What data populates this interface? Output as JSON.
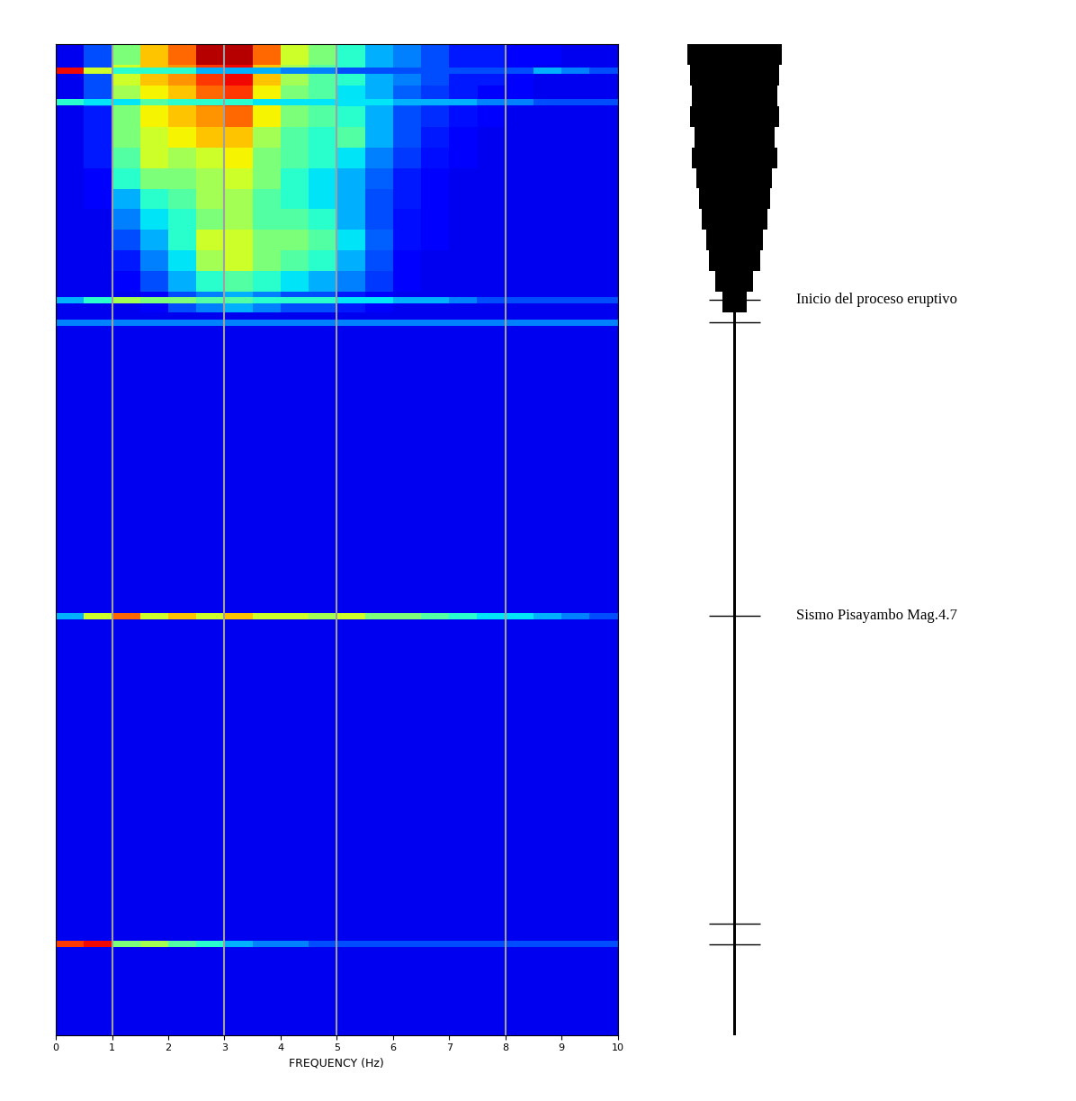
{
  "chart_data": [
    {
      "type": "heatmap",
      "x_label": "FREQUENCY (Hz)",
      "xlim": [
        0,
        10
      ],
      "xticks": [
        0,
        1,
        2,
        3,
        4,
        5,
        6,
        7,
        8,
        9,
        10
      ],
      "ylim": [
        48,
        0
      ],
      "tick_labels": "x",
      "value_range": [
        0,
        1
      ],
      "marked_frequencies": [
        1,
        3,
        5,
        8
      ],
      "cells": [
        [
          0.1,
          0.2,
          0.5,
          0.7,
          0.8,
          0.95,
          0.95,
          0.8,
          0.6,
          0.5,
          0.4,
          0.3,
          0.25,
          0.2,
          0.15,
          0.15,
          0.12,
          0.12,
          0.1,
          0.1
        ],
        [
          0.1,
          0.2,
          0.6,
          0.7,
          0.75,
          0.85,
          0.9,
          0.7,
          0.55,
          0.45,
          0.4,
          0.3,
          0.25,
          0.2,
          0.15,
          0.15,
          0.12,
          0.1,
          0.1,
          0.1
        ],
        [
          0.1,
          0.2,
          0.55,
          0.65,
          0.7,
          0.8,
          0.85,
          0.65,
          0.5,
          0.45,
          0.35,
          0.3,
          0.22,
          0.18,
          0.15,
          0.12,
          0.12,
          0.1,
          0.1,
          0.1
        ],
        [
          0.1,
          0.15,
          0.5,
          0.65,
          0.7,
          0.75,
          0.8,
          0.65,
          0.5,
          0.45,
          0.4,
          0.3,
          0.2,
          0.17,
          0.14,
          0.12,
          0.1,
          0.1,
          0.1,
          0.1
        ],
        [
          0.1,
          0.15,
          0.5,
          0.6,
          0.65,
          0.7,
          0.7,
          0.55,
          0.45,
          0.4,
          0.45,
          0.3,
          0.2,
          0.15,
          0.12,
          0.1,
          0.1,
          0.1,
          0.1,
          0.1
        ],
        [
          0.1,
          0.15,
          0.45,
          0.6,
          0.55,
          0.6,
          0.65,
          0.5,
          0.45,
          0.4,
          0.35,
          0.25,
          0.18,
          0.14,
          0.12,
          0.1,
          0.1,
          0.1,
          0.1,
          0.1
        ],
        [
          0.1,
          0.12,
          0.4,
          0.5,
          0.5,
          0.55,
          0.6,
          0.5,
          0.4,
          0.35,
          0.3,
          0.22,
          0.15,
          0.12,
          0.1,
          0.1,
          0.1,
          0.1,
          0.1,
          0.1
        ],
        [
          0.1,
          0.12,
          0.3,
          0.4,
          0.45,
          0.55,
          0.55,
          0.45,
          0.4,
          0.35,
          0.3,
          0.2,
          0.15,
          0.12,
          0.1,
          0.1,
          0.1,
          0.1,
          0.1,
          0.1
        ],
        [
          0.1,
          0.1,
          0.25,
          0.35,
          0.4,
          0.5,
          0.55,
          0.45,
          0.45,
          0.4,
          0.3,
          0.2,
          0.14,
          0.12,
          0.1,
          0.1,
          0.1,
          0.1,
          0.1,
          0.1
        ],
        [
          0.1,
          0.1,
          0.2,
          0.3,
          0.4,
          0.6,
          0.6,
          0.5,
          0.5,
          0.45,
          0.35,
          0.22,
          0.14,
          0.12,
          0.1,
          0.1,
          0.1,
          0.1,
          0.1,
          0.1
        ],
        [
          0.1,
          0.1,
          0.15,
          0.25,
          0.35,
          0.55,
          0.6,
          0.5,
          0.45,
          0.4,
          0.3,
          0.2,
          0.12,
          0.1,
          0.1,
          0.1,
          0.1,
          0.1,
          0.1,
          0.1
        ],
        [
          0.1,
          0.1,
          0.12,
          0.2,
          0.3,
          0.4,
          0.45,
          0.4,
          0.35,
          0.3,
          0.25,
          0.18,
          0.12,
          0.1,
          0.1,
          0.1,
          0.1,
          0.1,
          0.1,
          0.1
        ],
        [
          0.1,
          0.1,
          0.1,
          0.12,
          0.2,
          0.25,
          0.3,
          0.25,
          0.2,
          0.2,
          0.15,
          0.12,
          0.1,
          0.1,
          0.1,
          0.1,
          0.1,
          0.1,
          0.1,
          0.1
        ],
        [
          0.1,
          0.1,
          0.1,
          0.1,
          0.1,
          0.1,
          0.1,
          0.1,
          0.1,
          0.1,
          0.1,
          0.1,
          0.1,
          0.1,
          0.1,
          0.1,
          0.1,
          0.1,
          0.1,
          0.1
        ],
        [
          0.1,
          0.1,
          0.1,
          0.1,
          0.1,
          0.1,
          0.1,
          0.1,
          0.1,
          0.1,
          0.1,
          0.1,
          0.1,
          0.1,
          0.1,
          0.1,
          0.1,
          0.1,
          0.1,
          0.1
        ],
        [
          0.1,
          0.1,
          0.1,
          0.1,
          0.1,
          0.1,
          0.1,
          0.1,
          0.1,
          0.1,
          0.1,
          0.1,
          0.1,
          0.1,
          0.1,
          0.1,
          0.1,
          0.1,
          0.1,
          0.1
        ],
        [
          0.1,
          0.1,
          0.1,
          0.1,
          0.1,
          0.1,
          0.1,
          0.1,
          0.1,
          0.1,
          0.1,
          0.1,
          0.1,
          0.1,
          0.1,
          0.1,
          0.1,
          0.1,
          0.1,
          0.1
        ],
        [
          0.1,
          0.1,
          0.1,
          0.1,
          0.1,
          0.1,
          0.1,
          0.1,
          0.1,
          0.1,
          0.1,
          0.1,
          0.1,
          0.1,
          0.1,
          0.1,
          0.1,
          0.1,
          0.1,
          0.1
        ],
        [
          0.1,
          0.1,
          0.1,
          0.1,
          0.1,
          0.1,
          0.1,
          0.1,
          0.1,
          0.1,
          0.1,
          0.1,
          0.1,
          0.1,
          0.1,
          0.1,
          0.1,
          0.1,
          0.1,
          0.1
        ],
        [
          0.1,
          0.1,
          0.1,
          0.1,
          0.1,
          0.1,
          0.1,
          0.1,
          0.1,
          0.1,
          0.1,
          0.1,
          0.1,
          0.1,
          0.1,
          0.1,
          0.1,
          0.1,
          0.1,
          0.1
        ],
        [
          0.1,
          0.1,
          0.1,
          0.1,
          0.1,
          0.1,
          0.1,
          0.1,
          0.1,
          0.1,
          0.1,
          0.1,
          0.1,
          0.1,
          0.1,
          0.1,
          0.1,
          0.1,
          0.1,
          0.1
        ],
        [
          0.1,
          0.1,
          0.1,
          0.1,
          0.1,
          0.1,
          0.1,
          0.1,
          0.1,
          0.1,
          0.1,
          0.1,
          0.1,
          0.1,
          0.1,
          0.1,
          0.1,
          0.1,
          0.1,
          0.1
        ],
        [
          0.1,
          0.1,
          0.1,
          0.1,
          0.1,
          0.1,
          0.1,
          0.1,
          0.1,
          0.1,
          0.1,
          0.1,
          0.1,
          0.1,
          0.1,
          0.1,
          0.1,
          0.1,
          0.1,
          0.1
        ],
        [
          0.1,
          0.1,
          0.1,
          0.1,
          0.1,
          0.1,
          0.1,
          0.1,
          0.1,
          0.1,
          0.1,
          0.1,
          0.1,
          0.1,
          0.1,
          0.1,
          0.1,
          0.1,
          0.1,
          0.1
        ],
        [
          0.1,
          0.1,
          0.1,
          0.1,
          0.1,
          0.1,
          0.1,
          0.1,
          0.1,
          0.1,
          0.1,
          0.1,
          0.1,
          0.1,
          0.1,
          0.1,
          0.1,
          0.1,
          0.1,
          0.1
        ],
        [
          0.1,
          0.1,
          0.1,
          0.1,
          0.1,
          0.1,
          0.1,
          0.1,
          0.1,
          0.1,
          0.1,
          0.1,
          0.1,
          0.1,
          0.1,
          0.1,
          0.1,
          0.1,
          0.1,
          0.1
        ],
        [
          0.1,
          0.1,
          0.1,
          0.1,
          0.1,
          0.1,
          0.1,
          0.1,
          0.1,
          0.1,
          0.1,
          0.1,
          0.1,
          0.1,
          0.1,
          0.1,
          0.1,
          0.1,
          0.1,
          0.1
        ],
        [
          0.1,
          0.1,
          0.1,
          0.1,
          0.1,
          0.1,
          0.1,
          0.1,
          0.1,
          0.1,
          0.1,
          0.1,
          0.1,
          0.1,
          0.1,
          0.1,
          0.1,
          0.1,
          0.1,
          0.1
        ],
        [
          0.1,
          0.1,
          0.1,
          0.1,
          0.1,
          0.1,
          0.1,
          0.1,
          0.1,
          0.1,
          0.1,
          0.1,
          0.1,
          0.1,
          0.1,
          0.1,
          0.1,
          0.1,
          0.1,
          0.1
        ],
        [
          0.1,
          0.1,
          0.1,
          0.1,
          0.1,
          0.1,
          0.1,
          0.1,
          0.1,
          0.1,
          0.1,
          0.1,
          0.1,
          0.1,
          0.1,
          0.1,
          0.1,
          0.1,
          0.1,
          0.1
        ],
        [
          0.1,
          0.1,
          0.1,
          0.1,
          0.1,
          0.1,
          0.1,
          0.1,
          0.1,
          0.1,
          0.1,
          0.1,
          0.1,
          0.1,
          0.1,
          0.1,
          0.1,
          0.1,
          0.1,
          0.1
        ],
        [
          0.1,
          0.1,
          0.1,
          0.1,
          0.1,
          0.1,
          0.1,
          0.1,
          0.1,
          0.1,
          0.1,
          0.1,
          0.1,
          0.1,
          0.1,
          0.1,
          0.1,
          0.1,
          0.1,
          0.1
        ],
        [
          0.1,
          0.1,
          0.1,
          0.1,
          0.1,
          0.1,
          0.1,
          0.1,
          0.1,
          0.1,
          0.1,
          0.1,
          0.1,
          0.1,
          0.1,
          0.1,
          0.1,
          0.1,
          0.1,
          0.1
        ],
        [
          0.1,
          0.1,
          0.1,
          0.1,
          0.1,
          0.1,
          0.1,
          0.1,
          0.1,
          0.1,
          0.1,
          0.1,
          0.1,
          0.1,
          0.1,
          0.1,
          0.1,
          0.1,
          0.1,
          0.1
        ],
        [
          0.1,
          0.1,
          0.1,
          0.1,
          0.1,
          0.1,
          0.1,
          0.1,
          0.1,
          0.1,
          0.1,
          0.1,
          0.1,
          0.1,
          0.1,
          0.1,
          0.1,
          0.1,
          0.1,
          0.1
        ],
        [
          0.1,
          0.1,
          0.1,
          0.1,
          0.1,
          0.1,
          0.1,
          0.1,
          0.1,
          0.1,
          0.1,
          0.1,
          0.1,
          0.1,
          0.1,
          0.1,
          0.1,
          0.1,
          0.1,
          0.1
        ],
        [
          0.1,
          0.1,
          0.1,
          0.1,
          0.1,
          0.1,
          0.1,
          0.1,
          0.1,
          0.1,
          0.1,
          0.1,
          0.1,
          0.1,
          0.1,
          0.1,
          0.1,
          0.1,
          0.1,
          0.1
        ],
        [
          0.1,
          0.1,
          0.1,
          0.1,
          0.1,
          0.1,
          0.1,
          0.1,
          0.1,
          0.1,
          0.1,
          0.1,
          0.1,
          0.1,
          0.1,
          0.1,
          0.1,
          0.1,
          0.1,
          0.1
        ],
        [
          0.1,
          0.1,
          0.1,
          0.1,
          0.1,
          0.1,
          0.1,
          0.1,
          0.1,
          0.1,
          0.1,
          0.1,
          0.1,
          0.1,
          0.1,
          0.1,
          0.1,
          0.1,
          0.1,
          0.1
        ],
        [
          0.1,
          0.1,
          0.1,
          0.1,
          0.1,
          0.1,
          0.1,
          0.1,
          0.1,
          0.1,
          0.1,
          0.1,
          0.1,
          0.1,
          0.1,
          0.1,
          0.1,
          0.1,
          0.1,
          0.1
        ],
        [
          0.1,
          0.1,
          0.1,
          0.1,
          0.1,
          0.1,
          0.1,
          0.1,
          0.1,
          0.1,
          0.1,
          0.1,
          0.1,
          0.1,
          0.1,
          0.1,
          0.1,
          0.1,
          0.1,
          0.1
        ],
        [
          0.1,
          0.1,
          0.1,
          0.1,
          0.1,
          0.1,
          0.1,
          0.1,
          0.1,
          0.1,
          0.1,
          0.1,
          0.1,
          0.1,
          0.1,
          0.1,
          0.1,
          0.1,
          0.1,
          0.1
        ],
        [
          0.1,
          0.1,
          0.1,
          0.1,
          0.1,
          0.1,
          0.1,
          0.1,
          0.1,
          0.1,
          0.1,
          0.1,
          0.1,
          0.1,
          0.1,
          0.1,
          0.1,
          0.1,
          0.1,
          0.1
        ],
        [
          0.1,
          0.1,
          0.1,
          0.1,
          0.1,
          0.1,
          0.1,
          0.1,
          0.1,
          0.1,
          0.1,
          0.1,
          0.1,
          0.1,
          0.1,
          0.1,
          0.1,
          0.1,
          0.1,
          0.1
        ],
        [
          0.1,
          0.1,
          0.1,
          0.1,
          0.1,
          0.1,
          0.1,
          0.1,
          0.1,
          0.1,
          0.1,
          0.1,
          0.1,
          0.1,
          0.1,
          0.1,
          0.1,
          0.1,
          0.1,
          0.1
        ],
        [
          0.1,
          0.1,
          0.1,
          0.1,
          0.1,
          0.1,
          0.1,
          0.1,
          0.1,
          0.1,
          0.1,
          0.1,
          0.1,
          0.1,
          0.1,
          0.1,
          0.1,
          0.1,
          0.1,
          0.1
        ],
        [
          0.1,
          0.1,
          0.1,
          0.1,
          0.1,
          0.1,
          0.1,
          0.1,
          0.1,
          0.1,
          0.1,
          0.1,
          0.1,
          0.1,
          0.1,
          0.1,
          0.1,
          0.1,
          0.1,
          0.1
        ],
        [
          0.1,
          0.1,
          0.1,
          0.1,
          0.1,
          0.1,
          0.1,
          0.1,
          0.1,
          0.1,
          0.1,
          0.1,
          0.1,
          0.1,
          0.1,
          0.1,
          0.1,
          0.1,
          0.1,
          0.1
        ]
      ],
      "event_lines": [
        {
          "row": 1.3,
          "values": [
            0.9,
            0.6,
            0.4,
            0.4,
            0.4,
            0.3,
            0.3,
            0.3,
            0.25,
            0.25,
            0.2,
            0.2,
            0.2,
            0.2,
            0.2,
            0.2,
            0.2,
            0.3,
            0.25,
            0.2
          ]
        },
        {
          "row": 2.8,
          "values": [
            0.4,
            0.35,
            0.35,
            0.45,
            0.4,
            0.4,
            0.4,
            0.35,
            0.35,
            0.35,
            0.35,
            0.35,
            0.3,
            0.3,
            0.3,
            0.25,
            0.25,
            0.2,
            0.2,
            0.2
          ]
        },
        {
          "row": 12.4,
          "values": [
            0.3,
            0.4,
            0.55,
            0.5,
            0.5,
            0.45,
            0.45,
            0.4,
            0.4,
            0.4,
            0.35,
            0.35,
            0.3,
            0.3,
            0.25,
            0.2,
            0.2,
            0.2,
            0.2,
            0.2
          ]
        },
        {
          "row": 13.5,
          "values": [
            0.25,
            0.25,
            0.25,
            0.25,
            0.25,
            0.25,
            0.25,
            0.25,
            0.25,
            0.25,
            0.25,
            0.25,
            0.25,
            0.25,
            0.25,
            0.25,
            0.25,
            0.25,
            0.25,
            0.25
          ]
        },
        {
          "row": 27.7,
          "values": [
            0.3,
            0.6,
            0.8,
            0.6,
            0.7,
            0.6,
            0.7,
            0.6,
            0.6,
            0.55,
            0.6,
            0.5,
            0.5,
            0.45,
            0.4,
            0.35,
            0.35,
            0.3,
            0.25,
            0.2
          ]
        },
        {
          "row": 43.6,
          "values": [
            0.85,
            0.9,
            0.5,
            0.55,
            0.45,
            0.4,
            0.3,
            0.25,
            0.25,
            0.2,
            0.2,
            0.2,
            0.2,
            0.2,
            0.2,
            0.2,
            0.2,
            0.2,
            0.2,
            0.2
          ]
        }
      ]
    },
    {
      "type": "trace",
      "color": "#000000",
      "ylim": [
        48,
        0
      ],
      "tick_labels": false,
      "envelope": [
        1.0,
        0.95,
        0.9,
        0.95,
        0.85,
        0.9,
        0.8,
        0.75,
        0.7,
        0.6,
        0.55,
        0.4,
        0.25,
        0.02,
        0.02,
        0.02,
        0.02,
        0.02,
        0.02,
        0.02,
        0.02,
        0.02,
        0.02,
        0.02,
        0.02,
        0.02,
        0.02,
        0.02,
        0.02,
        0.02,
        0.02,
        0.02,
        0.02,
        0.02,
        0.02,
        0.02,
        0.02,
        0.02,
        0.02,
        0.02,
        0.02,
        0.02,
        0.02,
        0.02,
        0.02,
        0.02,
        0.02,
        0.02
      ],
      "events": [
        {
          "row": 12.4,
          "label": "Inicio del proceso eruptivo"
        },
        {
          "row": 13.5
        },
        {
          "row": 27.7,
          "label": "Sismo Pisayambo Mag.4.7"
        },
        {
          "row": 42.6
        },
        {
          "row": 43.6
        }
      ]
    }
  ]
}
